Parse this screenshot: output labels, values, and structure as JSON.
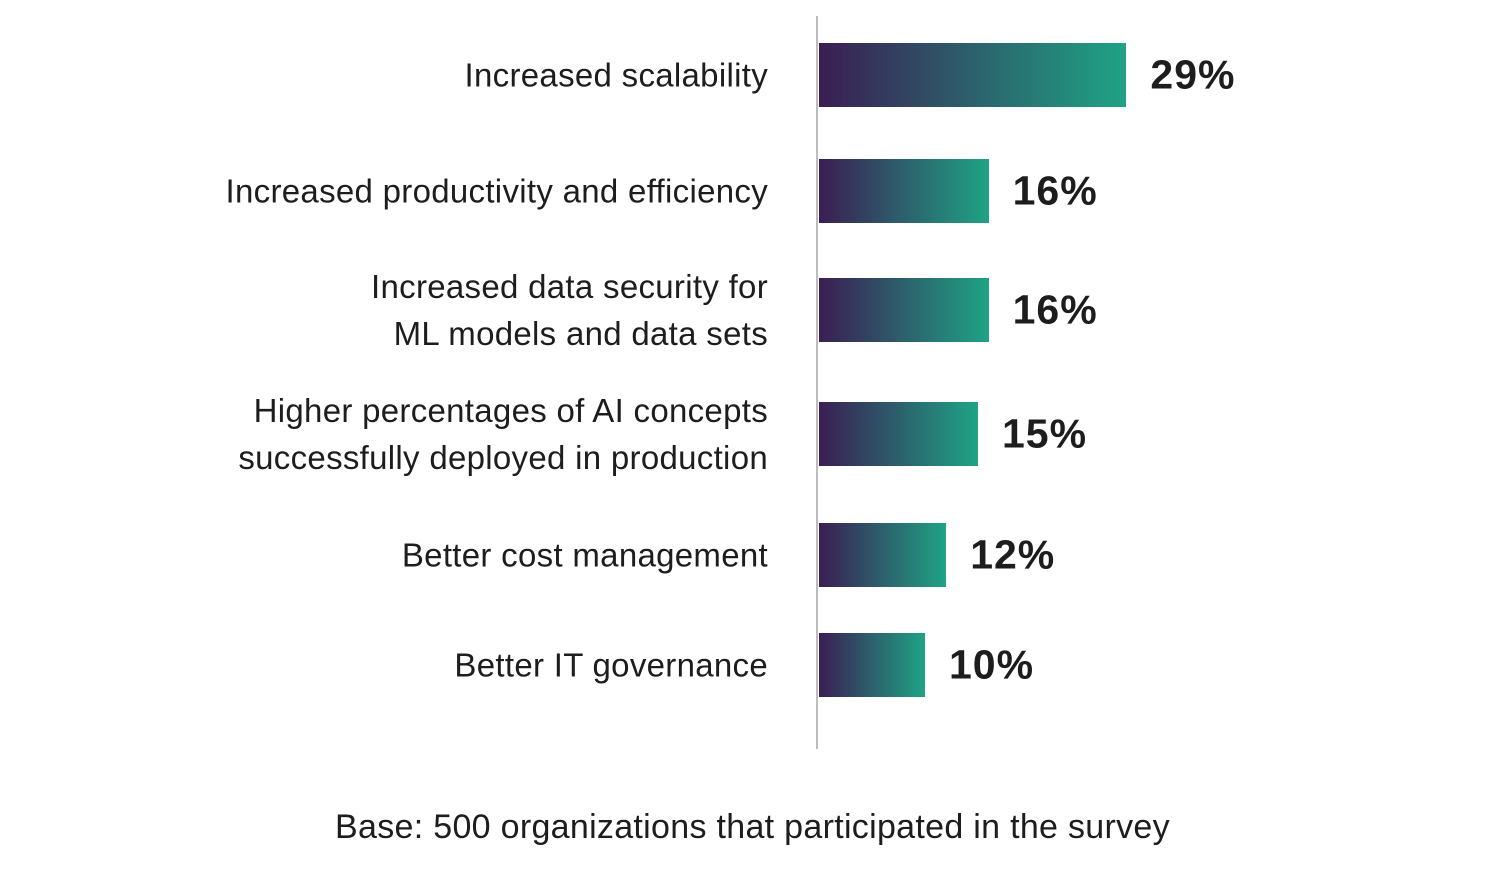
{
  "chart_data": {
    "type": "bar",
    "orientation": "horizontal",
    "title": "",
    "categories": [
      [
        "Increased scalability"
      ],
      [
        "Increased productivity and efficiency"
      ],
      [
        "Increased data security for",
        "ML models and data sets"
      ],
      [
        "Higher percentages of AI concepts",
        "successfully deployed in production"
      ],
      [
        "Better cost management"
      ],
      [
        "Better IT governance"
      ]
    ],
    "values": [
      29,
      16,
      16,
      15,
      12,
      10
    ],
    "value_labels": [
      "29%",
      "16%",
      "16%",
      "15%",
      "12%",
      "10%"
    ],
    "value_suffix": "%",
    "xlim": [
      0,
      29
    ],
    "grid": false,
    "legend": "none",
    "bar_gradient": {
      "start": "#3A1E53",
      "end": "#1FA385"
    },
    "axis_line_color": "#BDBDBD",
    "text_color": "#1D1D1D"
  },
  "footer": {
    "note": "Base: 500 organizations that participated in the survey"
  }
}
